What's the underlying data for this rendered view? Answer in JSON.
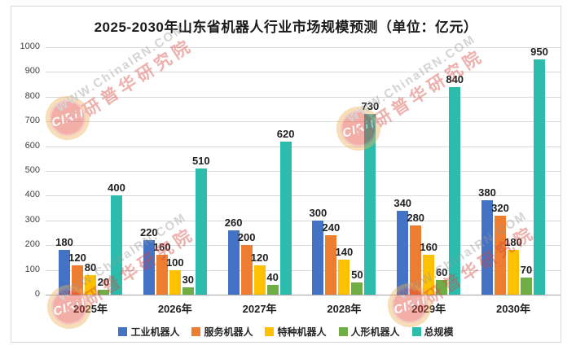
{
  "title": "2025-2030年山东省机器人行业市场规模预测（单位：亿元）",
  "watermark": {
    "badge": "CIRN",
    "line1": "WWW.ChinaIRN.COM",
    "line2": "中研普华研究院"
  },
  "chart_data": {
    "type": "bar",
    "title": "2025-2030年山东省机器人行业市场规模预测（单位：亿元）",
    "categories": [
      "2025年",
      "2026年",
      "2027年",
      "2028年",
      "2029年",
      "2030年"
    ],
    "series": [
      {
        "name": "工业机器人",
        "color": "#4472C4",
        "values": [
          180,
          220,
          260,
          300,
          340,
          380
        ]
      },
      {
        "name": "服务机器人",
        "color": "#ED7D31",
        "values": [
          120,
          160,
          200,
          240,
          280,
          320
        ]
      },
      {
        "name": "特种机器人",
        "color": "#FFC000",
        "values": [
          80,
          100,
          120,
          140,
          160,
          180
        ]
      },
      {
        "name": "人形机器人",
        "color": "#70AD47",
        "values": [
          20,
          30,
          40,
          50,
          60,
          70
        ]
      },
      {
        "name": "总规模",
        "color": "#2CBCAC",
        "values": [
          400,
          510,
          620,
          730,
          840,
          950
        ]
      }
    ],
    "ylim": [
      0,
      1000
    ],
    "ytick_step": 100,
    "yticks": [
      0,
      100,
      200,
      300,
      400,
      500,
      600,
      700,
      800,
      900,
      1000
    ],
    "grid": true,
    "data_labels": true,
    "legend_position": "bottom"
  }
}
